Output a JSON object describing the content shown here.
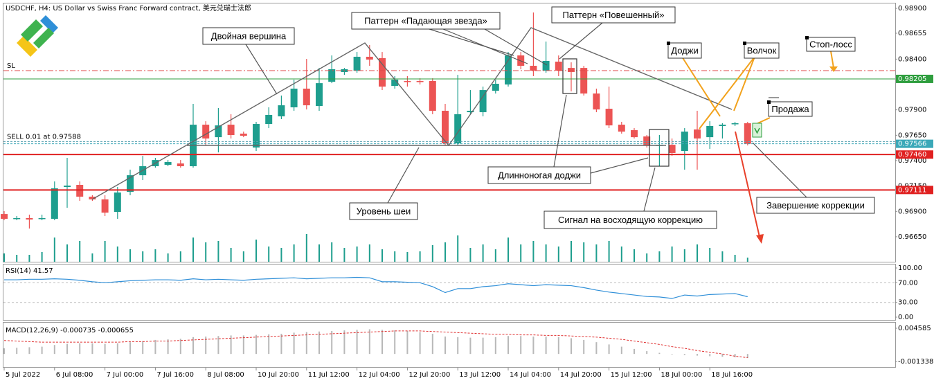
{
  "chart_data": [
    {
      "type": "candlestick",
      "title": "USDCHF, H4:  US Dollar vs Swiss Franc Forward contract, 美元兑瑞士法郎",
      "categories": [
        "5 Jul 2022",
        null,
        null,
        null,
        "6 Jul 08:00",
        null,
        null,
        null,
        "7 Jul 00:00",
        null,
        null,
        null,
        "7 Jul 16:00",
        null,
        null,
        null,
        "8 Jul 08:00",
        null,
        null,
        null,
        "10 Jul 20:00",
        null,
        null,
        null,
        "11 Jul 12:00",
        null,
        null,
        null,
        "12 Jul 04:00",
        null,
        null,
        null,
        "12 Jul 20:00",
        null,
        null,
        null,
        "13 Jul 12:00",
        null,
        null,
        null,
        "14 Jul 04:00",
        null,
        null,
        null,
        "14 Jul 20:00",
        null,
        null,
        null,
        "15 Jul 12:00",
        null,
        null,
        null,
        "18 Jul 00:00",
        null,
        null,
        null,
        "18 Jul 16:00",
        null,
        null,
        null
      ],
      "open": [
        0.96874,
        0.96827,
        0.96834,
        0.96827,
        0.96827,
        0.9714,
        0.97161,
        0.97045,
        0.97018,
        0.96895,
        0.97093,
        0.97256,
        0.97345,
        0.97359,
        0.97372,
        0.97345,
        0.97754,
        0.97631,
        0.97754,
        0.97666,
        0.97529,
        0.97761,
        0.97836,
        0.97925,
        0.98109,
        0.97938,
        0.98177,
        0.98273,
        0.98286,
        0.98423,
        0.98409,
        0.98136,
        0.98184,
        0.98184,
        0.98184,
        0.97891,
        0.9757,
        0.97877,
        0.97877,
        0.98088,
        0.9815,
        0.98436,
        0.98334,
        0.98286,
        0.98375,
        0.98313,
        0.98313,
        0.98061,
        0.97911,
        0.97754,
        0.977,
        0.97638,
        0.9755,
        0.97556,
        0.97495,
        0.97707,
        0.97631,
        0.97741,
        0.97761,
        0.97768
      ],
      "high": [
        0.96902,
        0.96854,
        0.96868,
        0.96868,
        0.97195,
        0.97427,
        0.97195,
        0.97059,
        0.97059,
        0.9714,
        0.97311,
        0.97447,
        0.97427,
        0.97406,
        0.97406,
        0.97959,
        0.97788,
        0.97918,
        0.97857,
        0.97686,
        0.97782,
        0.97925,
        0.98041,
        0.98198,
        0.98402,
        0.98313,
        0.98436,
        0.98313,
        0.9847,
        0.98539,
        0.9847,
        0.98232,
        0.98232,
        0.98211,
        0.98211,
        0.97959,
        0.98245,
        0.98095,
        0.98129,
        0.98198,
        0.9847,
        0.9847,
        0.98859,
        0.98573,
        0.98436,
        0.98368,
        0.98334,
        0.98109,
        0.98129,
        0.97782,
        0.9772,
        0.97652,
        0.97652,
        0.97618,
        0.9772,
        0.97891,
        0.97788,
        0.97768,
        0.97782,
        0.97782
      ],
      "low": [
        0.96813,
        0.96813,
        0.96731,
        0.96813,
        0.96813,
        0.96936,
        0.97004,
        0.97004,
        0.96854,
        0.96827,
        0.97059,
        0.97209,
        0.97331,
        0.97345,
        0.97331,
        0.97331,
        0.9755,
        0.97481,
        0.97618,
        0.97631,
        0.97495,
        0.9772,
        0.97809,
        0.97891,
        0.97904,
        0.97891,
        0.98163,
        0.98245,
        0.98266,
        0.98334,
        0.98095,
        0.98109,
        0.98129,
        0.9815,
        0.97857,
        0.9755,
        0.9755,
        0.97857,
        0.97836,
        0.98061,
        0.98129,
        0.983,
        0.98232,
        0.98266,
        0.98232,
        0.98082,
        0.98041,
        0.97877,
        0.9772,
        0.97666,
        0.97618,
        0.97529,
        0.97345,
        0.97447,
        0.97311,
        0.97311,
        0.97516,
        0.97618,
        0.97741,
        0.9755
      ],
      "close": [
        0.96827,
        0.96834,
        0.9682,
        0.96834,
        0.97127,
        0.97154,
        0.97045,
        0.97018,
        0.96888,
        0.97086,
        0.97256,
        0.97345,
        0.97406,
        0.97386,
        0.97345,
        0.97754,
        0.97618,
        0.97747,
        0.97652,
        0.97645,
        0.97761,
        0.9785,
        0.97945,
        0.98109,
        0.97945,
        0.98163,
        0.983,
        0.983,
        0.98423,
        0.98395,
        0.98129,
        0.98198,
        0.98177,
        0.98177,
        0.97891,
        0.9757,
        0.97857,
        0.97891,
        0.98095,
        0.98157,
        0.98436,
        0.98334,
        0.98286,
        0.98382,
        0.98286,
        0.98273,
        0.98061,
        0.97904,
        0.97747,
        0.97686,
        0.97631,
        0.9755,
        0.97556,
        0.97475,
        0.97686,
        0.97618,
        0.97741,
        0.97754,
        0.97768,
        0.97566
      ],
      "up_color": "#1e9e8e",
      "down_color": "#ec5454",
      "volumes": [
        12,
        10,
        10,
        14,
        35,
        25,
        30,
        12,
        30,
        22,
        18,
        15,
        18,
        12,
        15,
        35,
        28,
        30,
        20,
        15,
        32,
        22,
        20,
        25,
        40,
        25,
        28,
        20,
        22,
        25,
        18,
        15,
        14,
        15,
        24,
        28,
        38,
        20,
        25,
        18,
        35,
        25,
        30,
        25,
        22,
        30,
        28,
        25,
        30,
        22,
        18,
        12,
        15,
        22,
        18,
        25,
        20,
        15,
        10,
        6
      ],
      "volume_color": "#1e9e8e",
      "ylim": [
        0.96404,
        0.98948
      ],
      "yticks": [
        {
          "value": 0.989,
          "label": "0.98900"
        },
        {
          "value": 0.98655,
          "label": "0.98655"
        },
        {
          "value": 0.984,
          "label": "0.98400"
        },
        {
          "value": 0.979,
          "label": "0.97900"
        },
        {
          "value": 0.9765,
          "label": "0.97650"
        },
        {
          "value": 0.974,
          "label": "0.97400"
        },
        {
          "value": 0.9715,
          "label": "0.97150"
        },
        {
          "value": 0.969,
          "label": "0.96900"
        },
        {
          "value": 0.9665,
          "label": "0.96650"
        }
      ],
      "levels": [
        {
          "value": 0.98286,
          "color": "#e04848",
          "style": "dashdot",
          "label": "SL"
        },
        {
          "value": 0.98205,
          "color": "#2e9e3e",
          "style": "solid",
          "tag": "0.98205"
        },
        {
          "value": 0.97588,
          "color": "#5aa0b0",
          "style": "dashed",
          "label": "SELL 0.01 at 0.97588"
        },
        {
          "value": 0.97566,
          "color": "#3aa8b8",
          "style": "dashed",
          "tag": "0.97566"
        },
        {
          "value": 0.9746,
          "color": "#e02020",
          "style": "thick",
          "tag": "0.97460"
        },
        {
          "value": 0.97111,
          "color": "#e02020",
          "style": "thick",
          "tag": "0.97111"
        }
      ],
      "annotations": [
        "Двойная вершина",
        "Паттерн «Падающая звезда»",
        "Паттерн «Повешенный»",
        "Доджи",
        "Волчок",
        "Стоп-лосс",
        "Продажа",
        "Длинноногая доджи",
        "Уровень шеи",
        "Сигнал на восходящую коррекцию",
        "Завершение коррекции"
      ]
    },
    {
      "type": "line",
      "title": "RSI(14) 41.57",
      "values": [
        76,
        76,
        77,
        77,
        78,
        77,
        75,
        72,
        70,
        72,
        74,
        75,
        76,
        76,
        75,
        78,
        76,
        77,
        76,
        75,
        77,
        78,
        79,
        80,
        78,
        79,
        80,
        80,
        81,
        80,
        72,
        72,
        71,
        70,
        62,
        50,
        58,
        58,
        62,
        64,
        68,
        66,
        64,
        66,
        65,
        64,
        60,
        55,
        51,
        48,
        45,
        42,
        41,
        38,
        45,
        43,
        46,
        47,
        48,
        41.57
      ],
      "color": "#2f8fd8",
      "ylim": [
        0,
        100
      ],
      "yticks": [
        {
          "value": 100,
          "label": "100.00"
        },
        {
          "value": 70,
          "label": "70.00"
        },
        {
          "value": 30,
          "label": "30.00"
        },
        {
          "value": 0,
          "label": "0.00"
        }
      ],
      "reference_lines": [
        70,
        30
      ]
    },
    {
      "type": "macd",
      "title": "MACD(12,26,9) -0.000735 -0.000655",
      "histogram": [
        0.001,
        0.0011,
        0.0012,
        0.0013,
        0.0016,
        0.0018,
        0.0019,
        0.0019,
        0.0018,
        0.0019,
        0.0021,
        0.0023,
        0.0025,
        0.0026,
        0.0027,
        0.003,
        0.0031,
        0.0032,
        0.0033,
        0.0033,
        0.0034,
        0.0035,
        0.0036,
        0.0038,
        0.0039,
        0.004,
        0.0041,
        0.0042,
        0.0043,
        0.0044,
        0.0043,
        0.0042,
        0.0041,
        0.0039,
        0.0036,
        0.0031,
        0.003,
        0.0029,
        0.0029,
        0.003,
        0.0032,
        0.0032,
        0.0031,
        0.0031,
        0.003,
        0.0028,
        0.0025,
        0.0021,
        0.0017,
        0.0013,
        0.0009,
        0.0005,
        0.0002,
        -0.0001,
        -0.0002,
        -0.0003,
        -0.0004,
        -0.0005,
        -0.0006,
        -0.000735
      ],
      "signal": [
        0.0024,
        0.0023,
        0.0022,
        0.0021,
        0.0021,
        0.0021,
        0.0021,
        0.0021,
        0.0021,
        0.0021,
        0.0022,
        0.0022,
        0.0023,
        0.0023,
        0.0024,
        0.0025,
        0.0026,
        0.0027,
        0.0028,
        0.0029,
        0.003,
        0.0031,
        0.0032,
        0.0033,
        0.0034,
        0.0035,
        0.0036,
        0.0037,
        0.0038,
        0.0039,
        0.004,
        0.0041,
        0.0041,
        0.0041,
        0.004,
        0.0039,
        0.0038,
        0.0037,
        0.0036,
        0.0035,
        0.0035,
        0.0034,
        0.0034,
        0.0033,
        0.0033,
        0.0032,
        0.0031,
        0.003,
        0.0028,
        0.0026,
        0.0023,
        0.002,
        0.0017,
        0.0013,
        0.001,
        0.0006,
        0.0003,
        0.0,
        -0.0004,
        -0.000655
      ],
      "histogram_color": "#b8b8b8",
      "signal_color": "#e03030",
      "ylim": [
        -0.001338,
        0.004585
      ],
      "yticks": [
        0.004585,
        -0.001338
      ]
    }
  ]
}
